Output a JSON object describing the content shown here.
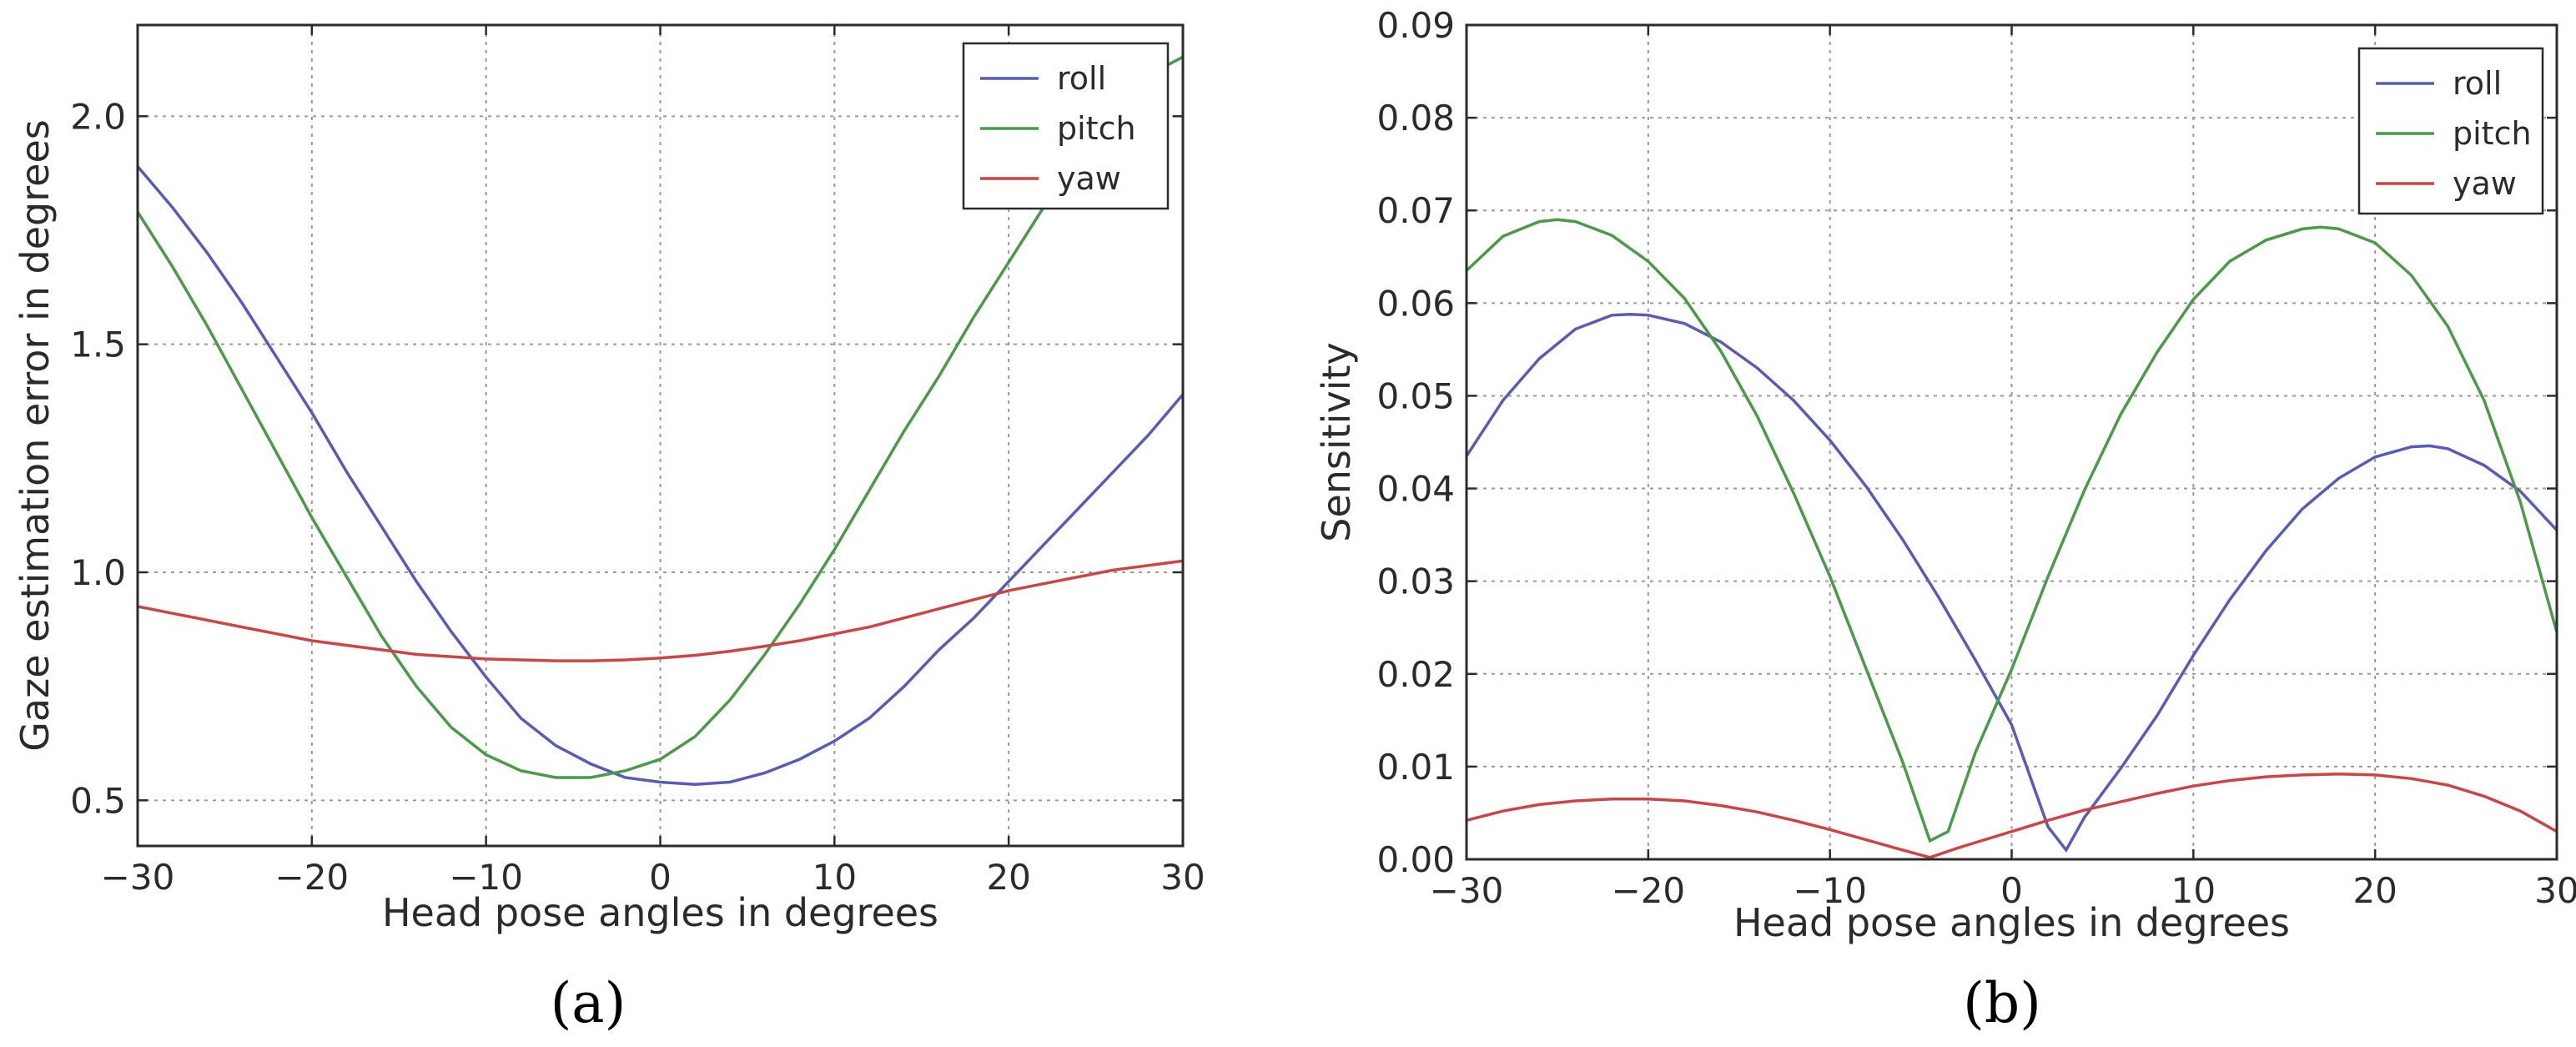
{
  "colors": {
    "roll": "#5a5ab8",
    "pitch": "#4a9a4a",
    "yaw": "#cc4444"
  },
  "chart_data": [
    {
      "type": "line",
      "caption": "(a)",
      "xlabel": "Head pose angles in degrees",
      "ylabel": "Gaze estimation error in degrees",
      "xlim": [
        -30,
        30
      ],
      "ylim": [
        0.4,
        2.2
      ],
      "x_ticks": [
        -30,
        -20,
        -10,
        0,
        10,
        20,
        30
      ],
      "x_tick_labels": [
        "−30",
        "−20",
        "−10",
        "0",
        "10",
        "20",
        "30"
      ],
      "y_ticks": [
        0.5,
        1.0,
        1.5,
        2.0
      ],
      "y_tick_labels": [
        "0.5",
        "1.0",
        "1.5",
        "2.0"
      ],
      "grid": true,
      "legend_position": "top-right",
      "x": [
        -30,
        -28,
        -26,
        -24,
        -22,
        -20,
        -18,
        -16,
        -14,
        -12,
        -10,
        -8,
        -6,
        -4,
        -2,
        0,
        2,
        4,
        6,
        8,
        10,
        12,
        14,
        16,
        18,
        20,
        22,
        24,
        26,
        28,
        30
      ],
      "series": [
        {
          "name": "roll",
          "color": "roll",
          "values": [
            1.89,
            1.8,
            1.7,
            1.59,
            1.47,
            1.35,
            1.22,
            1.1,
            0.98,
            0.87,
            0.77,
            0.68,
            0.62,
            0.58,
            0.55,
            0.54,
            0.535,
            0.54,
            0.56,
            0.59,
            0.63,
            0.68,
            0.75,
            0.83,
            0.9,
            0.98,
            1.06,
            1.14,
            1.22,
            1.3,
            1.39
          ]
        },
        {
          "name": "pitch",
          "color": "pitch",
          "values": [
            1.79,
            1.67,
            1.54,
            1.4,
            1.26,
            1.12,
            0.99,
            0.86,
            0.75,
            0.66,
            0.6,
            0.565,
            0.55,
            0.55,
            0.565,
            0.59,
            0.64,
            0.72,
            0.82,
            0.93,
            1.05,
            1.18,
            1.31,
            1.43,
            1.56,
            1.68,
            1.8,
            1.91,
            2.01,
            2.09,
            2.13
          ]
        },
        {
          "name": "yaw",
          "color": "yaw",
          "values": [
            0.925,
            0.91,
            0.895,
            0.88,
            0.865,
            0.85,
            0.84,
            0.83,
            0.82,
            0.815,
            0.81,
            0.808,
            0.806,
            0.806,
            0.808,
            0.812,
            0.818,
            0.827,
            0.838,
            0.85,
            0.865,
            0.88,
            0.9,
            0.92,
            0.94,
            0.96,
            0.975,
            0.99,
            1.005,
            1.015,
            1.025
          ]
        }
      ]
    },
    {
      "type": "line",
      "caption": "(b)",
      "xlabel": "Head pose angles in degrees",
      "ylabel": "Sensitivity",
      "xlim": [
        -30,
        30
      ],
      "ylim": [
        0,
        0.09
      ],
      "x_ticks": [
        -30,
        -20,
        -10,
        0,
        10,
        20,
        30
      ],
      "x_tick_labels": [
        "−30",
        "−20",
        "−10",
        "0",
        "10",
        "20",
        "30"
      ],
      "y_ticks": [
        0,
        0.01,
        0.02,
        0.03,
        0.04,
        0.05,
        0.06,
        0.07,
        0.08,
        0.09
      ],
      "y_tick_labels": [
        "0.00",
        "0.01",
        "0.02",
        "0.03",
        "0.04",
        "0.05",
        "0.06",
        "0.07",
        "0.08",
        "0.09"
      ],
      "grid": true,
      "legend_position": "top-right",
      "series": [
        {
          "name": "roll",
          "color": "roll",
          "x": [
            -30,
            -28,
            -26,
            -24,
            -22,
            -21,
            -20,
            -18,
            -16,
            -14,
            -12,
            -10,
            -8,
            -6,
            -4,
            -2,
            0,
            2,
            3,
            4,
            6,
            8,
            10,
            12,
            14,
            16,
            18,
            20,
            22,
            23,
            24,
            26,
            28,
            30
          ],
          "values": [
            0.0435,
            0.0495,
            0.054,
            0.0572,
            0.0587,
            0.0588,
            0.0587,
            0.0578,
            0.0558,
            0.053,
            0.0495,
            0.0452,
            0.0402,
            0.0345,
            0.0282,
            0.0215,
            0.0145,
            0.0035,
            0.001,
            0.0045,
            0.0098,
            0.0155,
            0.022,
            0.028,
            0.0333,
            0.0378,
            0.0411,
            0.0434,
            0.0445,
            0.0446,
            0.0443,
            0.0425,
            0.0397,
            0.0355
          ]
        },
        {
          "name": "pitch",
          "color": "pitch",
          "x": [
            -30,
            -28,
            -26,
            -25,
            -24,
            -22,
            -20,
            -18,
            -16,
            -14,
            -12,
            -10,
            -8,
            -6,
            -4.5,
            -3.5,
            -2,
            0,
            2,
            4,
            6,
            8,
            10,
            12,
            14,
            16,
            17,
            18,
            20,
            22,
            24,
            26,
            28,
            30
          ],
          "values": [
            0.0635,
            0.0672,
            0.0688,
            0.069,
            0.0688,
            0.0673,
            0.0645,
            0.0605,
            0.0548,
            0.0478,
            0.0395,
            0.0305,
            0.0205,
            0.0105,
            0.002,
            0.003,
            0.0115,
            0.0205,
            0.0305,
            0.0398,
            0.048,
            0.0547,
            0.0604,
            0.0645,
            0.0668,
            0.068,
            0.0682,
            0.068,
            0.0665,
            0.063,
            0.0575,
            0.0495,
            0.0385,
            0.0245
          ]
        },
        {
          "name": "yaw",
          "color": "yaw",
          "x": [
            -30,
            -28,
            -26,
            -24,
            -22,
            -20,
            -18,
            -16,
            -14,
            -12,
            -10,
            -8,
            -6,
            -4.5,
            -3,
            -2,
            0,
            2,
            4,
            6,
            8,
            10,
            12,
            14,
            16,
            18,
            20,
            22,
            24,
            26,
            28,
            30
          ],
          "values": [
            0.0042,
            0.0052,
            0.0059,
            0.0063,
            0.0065,
            0.0065,
            0.0063,
            0.0058,
            0.0051,
            0.0042,
            0.0032,
            0.0021,
            0.001,
            0.0002,
            0.0012,
            0.0018,
            0.003,
            0.0042,
            0.0053,
            0.0062,
            0.0071,
            0.0079,
            0.0085,
            0.0089,
            0.0091,
            0.0092,
            0.0091,
            0.0087,
            0.008,
            0.0068,
            0.0052,
            0.003
          ]
        }
      ]
    }
  ]
}
